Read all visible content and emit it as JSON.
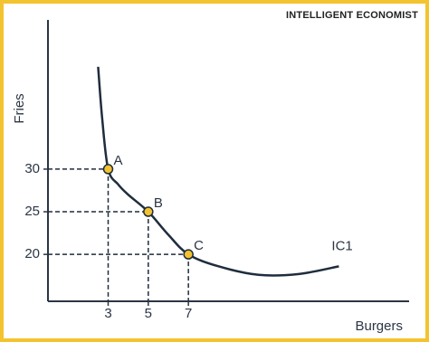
{
  "watermark": "INTELLIGENT ECONOMIST",
  "chart_data": {
    "type": "line",
    "x_label": "Burgers",
    "y_label": "Fries",
    "xlim": [
      0,
      18
    ],
    "ylim": [
      14.5,
      47.5
    ],
    "xticks": [
      3,
      5,
      7
    ],
    "yticks": [
      20,
      25,
      30
    ],
    "series": [
      {
        "name": "IC1",
        "color": "#1f2d3d",
        "x": [
          2.5,
          2.7,
          3,
          3.5,
          4,
          5,
          6,
          7,
          8.5,
          10.5,
          12.5,
          14.5
        ],
        "values": [
          42,
          36,
          30,
          28.2,
          27,
          25,
          22.3,
          20,
          18.6,
          17.6,
          17.7,
          18.6
        ]
      }
    ],
    "points": {
      "labels": [
        "A",
        "B",
        "C"
      ],
      "x": [
        3,
        5,
        7
      ],
      "values": [
        30,
        25,
        20
      ],
      "color": "#f2c230"
    }
  }
}
